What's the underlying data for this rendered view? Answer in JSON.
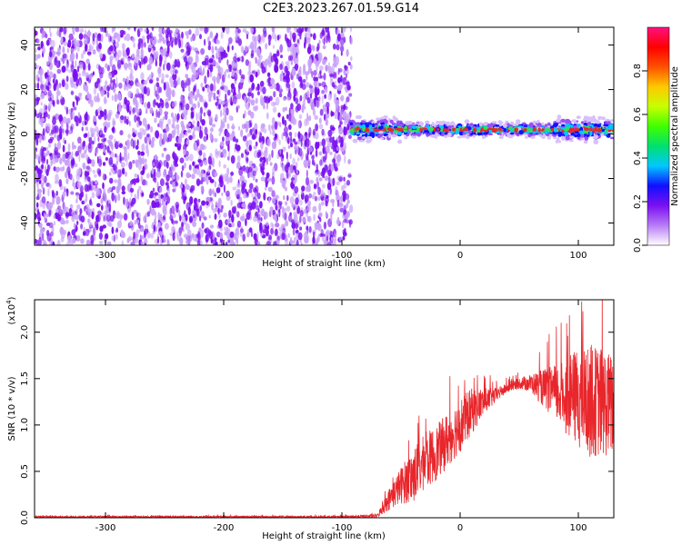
{
  "title": "C2E3.2023.267.01.59.G14",
  "colors": {
    "snr_line": "#e8262b",
    "noise_dot": "#7a10f0",
    "noise_dot_light": "#c8a0f8",
    "signal_core": "#e8262b"
  },
  "chart_data": [
    {
      "type": "heatmap",
      "title": "",
      "xlabel": "Height of straight line (km)",
      "ylabel": "Frequency (Hz)",
      "xlim": [
        -360,
        130
      ],
      "ylim": [
        -50,
        48
      ],
      "xticks": [
        -300,
        -200,
        -100,
        0,
        100
      ],
      "yticks": [
        -40,
        -20,
        0,
        20,
        40
      ],
      "noise_region_x": [
        -360,
        -92
      ],
      "signal_region_x": [
        -92,
        130
      ],
      "signal_center_frequency": 2,
      "colorbar": {
        "label": "Normalized spectral amplitude",
        "range": [
          0,
          1
        ],
        "ticks": [
          0.0,
          0.2,
          0.4,
          0.6,
          0.8
        ],
        "colors": [
          "#ffffff",
          "#b87cf6",
          "#7a10f0",
          "#1010ff",
          "#00c8ff",
          "#00e070",
          "#40ff00",
          "#c8ff00",
          "#ffc800",
          "#ff5000",
          "#ff0000",
          "#ff1080"
        ]
      }
    },
    {
      "type": "line",
      "title": "",
      "xlabel": "Height of straight line (km)",
      "ylabel": "SNR (10 * v/v)",
      "y_multiplier": "(x10",
      "y_multiplier_exp": "4",
      "xlim": [
        -360,
        130
      ],
      "ylim": [
        0,
        2.35
      ],
      "xticks": [
        -300,
        -200,
        -100,
        0,
        100
      ],
      "yticks": [
        "0.0",
        "0.5",
        "1.0",
        "1.5",
        "2.0"
      ],
      "series": [
        {
          "x": [
            -360,
            -300,
            -200,
            -100,
            -70,
            -60,
            -50,
            -40,
            -30,
            -20,
            -10,
            0,
            10,
            20,
            30,
            40,
            50,
            60,
            70,
            80,
            90,
            100,
            110,
            120,
            130
          ],
          "y": [
            0.01,
            0.01,
            0.01,
            0.01,
            0.02,
            0.2,
            0.35,
            0.45,
            0.6,
            0.7,
            0.85,
            1.0,
            1.15,
            1.25,
            1.32,
            1.4,
            1.45,
            1.45,
            1.4,
            1.35,
            1.3,
            1.3,
            1.25,
            1.25,
            1.2
          ],
          "spread": [
            0.01,
            0.01,
            0.01,
            0.01,
            0.02,
            0.12,
            0.2,
            0.3,
            0.3,
            0.3,
            0.3,
            0.3,
            0.25,
            0.15,
            0.08,
            0.05,
            0.06,
            0.1,
            0.2,
            0.3,
            0.4,
            0.55,
            0.6,
            0.6,
            0.55
          ]
        }
      ]
    }
  ]
}
